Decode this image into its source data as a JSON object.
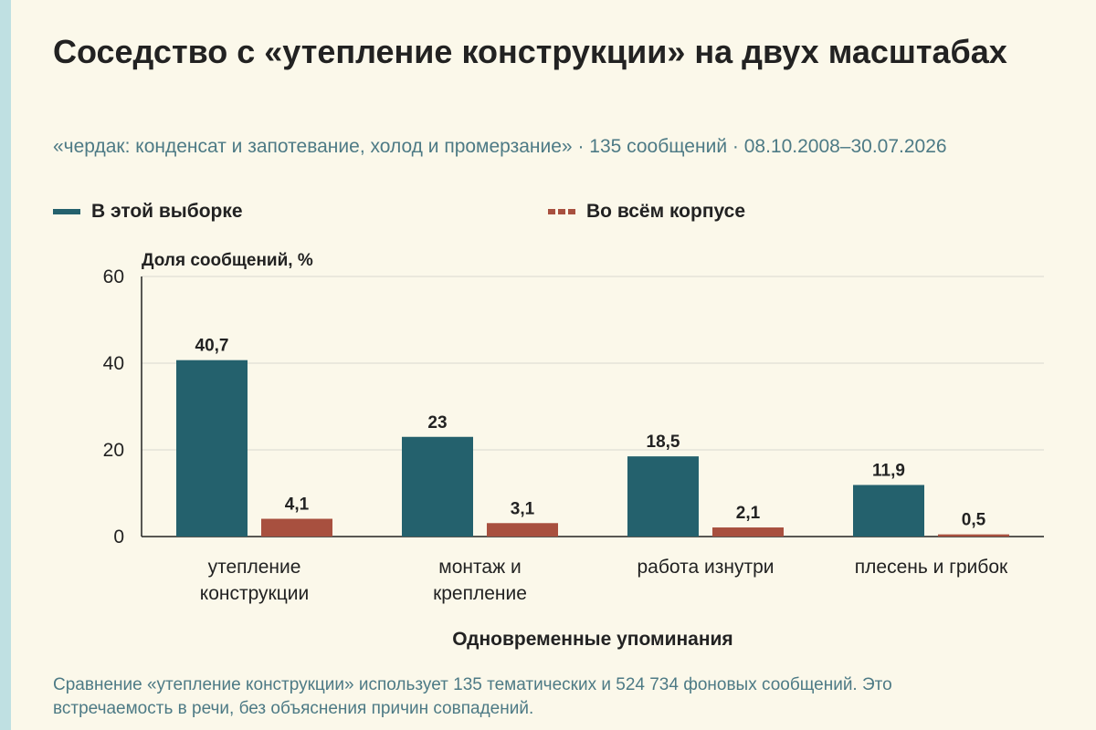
{
  "title": "Соседство с «утепление конструкции» на двух масштабах",
  "subtitle": "«чердак: конденсат и запотевание, холод и промерзание» · 135 сообщений · 08.10.2008–30.07.2026",
  "footnote": "Сравнение «утепление конструкции» использует 135 тематических и 524 734 фоновых сообщений. Это встречаемость в речи, без объяснения причин совпадений.",
  "colors": {
    "sample": "#24616d",
    "corpus": "#a8503f"
  },
  "chart_data": {
    "type": "bar",
    "ylabel": "Доля сообщений, %",
    "xlabel": "Одновременные упоминания",
    "ylim": [
      0,
      60
    ],
    "yticks": [
      0,
      20,
      40,
      60
    ],
    "grid": true,
    "legend_position": "top",
    "categories": [
      [
        "утепление",
        "конструкции"
      ],
      [
        "монтаж и",
        "крепление"
      ],
      [
        "работа изнутри"
      ],
      [
        "плесень и грибок"
      ]
    ],
    "series": [
      {
        "name": "В этой выборке",
        "values": [
          40.7,
          23,
          18.5,
          11.9
        ],
        "labels": [
          "40,7",
          "23",
          "18,5",
          "11,9"
        ]
      },
      {
        "name": "Во всём корпусе",
        "values": [
          4.1,
          3.1,
          2.1,
          0.5
        ],
        "labels": [
          "4,1",
          "3,1",
          "2,1",
          "0,5"
        ]
      }
    ]
  }
}
